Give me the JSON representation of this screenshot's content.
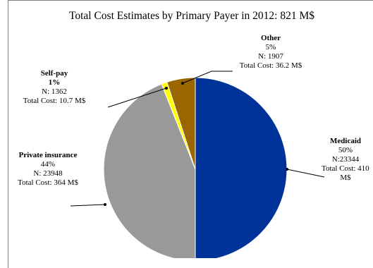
{
  "chart_data": {
    "type": "pie",
    "title": "Total Cost Estimates by Primary Payer in 2012: 821 M$",
    "slices": [
      {
        "name": "Medicaid",
        "percent": "50%",
        "n": "N:23344",
        "cost": "Total Cost: 410 M$",
        "cost_line1": "Total Cost: 410",
        "cost_line2": "M$",
        "value": 50,
        "color": "#003399"
      },
      {
        "name": "Private insurance",
        "percent": "44%",
        "n": "N: 23948",
        "cost": "Total Cost: 364 M$",
        "value": 44,
        "color": "#999999"
      },
      {
        "name": "Self-pay",
        "percent": "1%",
        "n": "N: 1362",
        "cost": "Total Cost: 10.7 M$",
        "value": 1,
        "color": "#ffff00"
      },
      {
        "name": "Other",
        "percent": "5%",
        "n": "N: 1907",
        "cost": "Total Cost: 36.2 M$",
        "value": 5,
        "color": "#996600"
      }
    ]
  }
}
